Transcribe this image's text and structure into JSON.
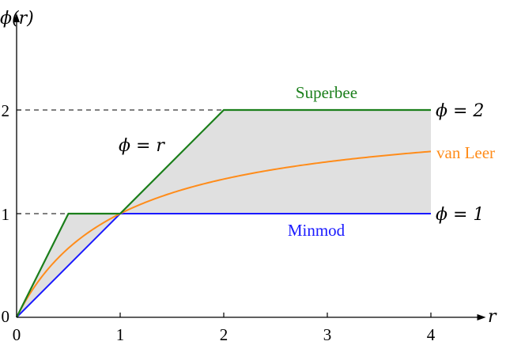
{
  "chart_data": {
    "type": "line",
    "title": "",
    "xlabel": "r",
    "ylabel": "ϕ(r)",
    "xlim": [
      0,
      4.5
    ],
    "ylim": [
      0,
      2.9
    ],
    "x_ticks": [
      "0",
      "1",
      "2",
      "3",
      "4"
    ],
    "y_ticks": [
      "0",
      "1",
      "2"
    ],
    "series": [
      {
        "name": "Superbee",
        "color": "#1b7f1b",
        "x": [
          0,
          0.5,
          1,
          2,
          4
        ],
        "y": [
          0,
          1,
          1,
          2,
          2
        ]
      },
      {
        "name": "van Leer",
        "color": "#ff8c1a",
        "function": "(r + |r|) / (1 + |r|)",
        "x_range": [
          0,
          4
        ]
      },
      {
        "name": "Minmod",
        "color": "#1a1aff",
        "x": [
          0,
          1,
          4
        ],
        "y": [
          0,
          1,
          1
        ]
      }
    ],
    "shaded_region": {
      "between": [
        "Minmod",
        "Superbee"
      ],
      "x_range": [
        0,
        4
      ],
      "color": "#e0e0e0"
    },
    "reference_lines": [
      {
        "y": 1,
        "style": "dashed",
        "label": "ϕ = 1"
      },
      {
        "y": 2,
        "style": "dashed",
        "label": "ϕ = 2"
      }
    ],
    "annotations": [
      {
        "text": "ϕ = r"
      }
    ]
  }
}
